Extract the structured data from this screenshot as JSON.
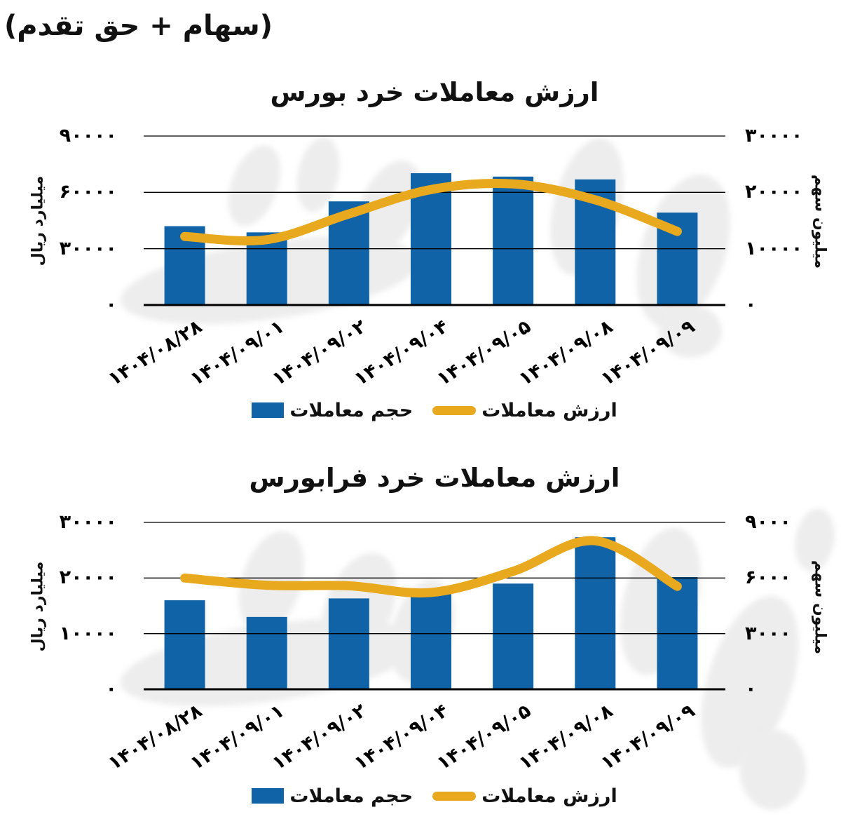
{
  "header": {
    "note": "(سهام + حق تقدم)"
  },
  "colors": {
    "bar": "#1063A7",
    "line": "#E9A91E",
    "grid": "#000000",
    "axis_text": "#000000",
    "watermark": "#EDEDED"
  },
  "chart_data": [
    {
      "type": "bar+line",
      "title": "ارزش معاملات خرد بورس",
      "categories": [
        "۱۴۰۴/۰۸/۲۸",
        "۱۴۰۴/۰۹/۰۱",
        "۱۴۰۴/۰۹/۰۲",
        "۱۴۰۴/۰۹/۰۴",
        "۱۴۰۴/۰۹/۰۵",
        "۱۴۰۴/۰۹/۰۸",
        "۱۴۰۴/۰۹/۰۹"
      ],
      "series": [
        {
          "name": "حجم معاملات",
          "type": "bar",
          "axis": "right",
          "unit": "میلیون سهم",
          "values": [
            14000,
            12900,
            18400,
            23400,
            22800,
            22300,
            16400
          ]
        },
        {
          "name": "ارزش معاملات",
          "type": "line",
          "axis": "left",
          "unit": "میلیارد ریال",
          "values": [
            36500,
            34800,
            48500,
            61500,
            64500,
            56000,
            39200
          ]
        }
      ],
      "left_axis": {
        "label": "میلیارد ریال",
        "ylim": [
          0,
          90000
        ],
        "ticks": [
          90000,
          60000,
          30000,
          0
        ],
        "tick_labels": [
          "۹۰۰۰۰",
          "۶۰۰۰۰",
          "۳۰۰۰۰",
          "۰"
        ]
      },
      "right_axis": {
        "label": "میلیون سهم",
        "ylim": [
          0,
          30000
        ],
        "ticks": [
          30000,
          20000,
          10000,
          0
        ],
        "tick_labels": [
          "۳۰۰۰۰",
          "۲۰۰۰۰",
          "۱۰۰۰۰",
          "۰"
        ]
      },
      "grid": true,
      "legend_position": "bottom"
    },
    {
      "type": "bar+line",
      "title": "ارزش معاملات خرد فرابورس",
      "categories": [
        "۱۴۰۴/۰۸/۲۸",
        "۱۴۰۴/۰۹/۰۱",
        "۱۴۰۴/۰۹/۰۲",
        "۱۴۰۴/۰۹/۰۴",
        "۱۴۰۴/۰۹/۰۵",
        "۱۴۰۴/۰۹/۰۸",
        "۱۴۰۴/۰۹/۰۹"
      ],
      "series": [
        {
          "name": "حجم معاملات",
          "type": "bar",
          "axis": "right",
          "unit": "میلیون سهم",
          "values": [
            4800,
            3900,
            4900,
            5200,
            5700,
            8200,
            6050
          ]
        },
        {
          "name": "ارزش معاملات",
          "type": "line",
          "axis": "left",
          "unit": "میلیارد ریال",
          "values": [
            20000,
            18700,
            18600,
            17400,
            21200,
            26700,
            18500
          ]
        }
      ],
      "left_axis": {
        "label": "میلیارد ریال",
        "ylim": [
          0,
          30000
        ],
        "ticks": [
          30000,
          20000,
          10000,
          0
        ],
        "tick_labels": [
          "۳۰۰۰۰",
          "۲۰۰۰۰",
          "۱۰۰۰۰",
          "۰"
        ]
      },
      "right_axis": {
        "label": "میلیون سهم",
        "ylim": [
          0,
          9000
        ],
        "ticks": [
          9000,
          6000,
          3000,
          0
        ],
        "tick_labels": [
          "۹۰۰۰",
          "۶۰۰۰",
          "۳۰۰۰",
          "۰"
        ]
      },
      "grid": true,
      "legend_position": "bottom"
    }
  ]
}
